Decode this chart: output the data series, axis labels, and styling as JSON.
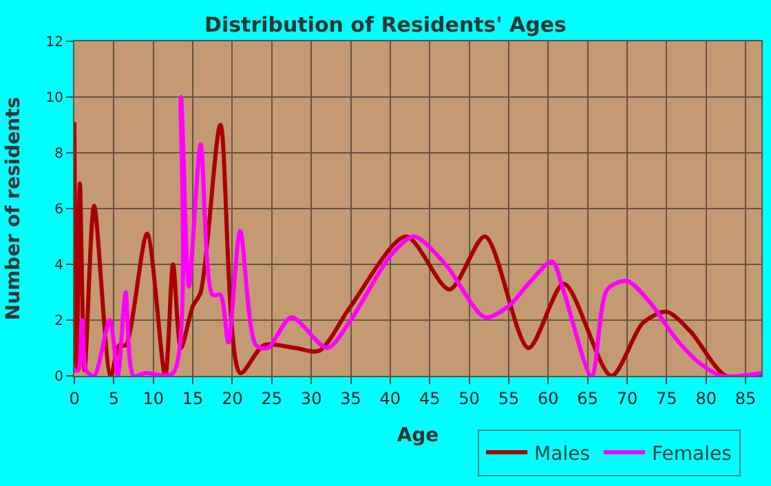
{
  "chart_data": {
    "type": "line",
    "title": "Distribution of Residents' Ages",
    "xlabel": "Age",
    "ylabel": "Number of residents",
    "xlim": [
      0,
      87
    ],
    "xticks": [
      0,
      5,
      10,
      15,
      20,
      25,
      30,
      35,
      40,
      45,
      50,
      55,
      60,
      65,
      70,
      75,
      80,
      85
    ],
    "ylim": [
      0,
      12
    ],
    "yticks": [
      0,
      2,
      4,
      6,
      8,
      10,
      12
    ],
    "grid": true,
    "legend": "bottom",
    "marker": "none",
    "line_style": "solid",
    "series": [
      {
        "name": "Males",
        "color": "#aa0000",
        "x": [
          0,
          0.3,
          0.7,
          1.3,
          2.5,
          4.6,
          5.7,
          6.5,
          9.2,
          11.5,
          12.5,
          13.5,
          15,
          16,
          18.5,
          21,
          24,
          28,
          31,
          35,
          42,
          47.5,
          52,
          57.5,
          62,
          68,
          72,
          75,
          78,
          82.5,
          87
        ],
        "values": [
          9.1,
          0.3,
          6.9,
          0.2,
          6.1,
          0,
          1.1,
          1.1,
          5.1,
          0,
          4,
          1,
          2.5,
          3,
          9,
          0.1,
          1.1,
          1,
          0.9,
          2.5,
          5,
          3.1,
          5,
          1,
          3.3,
          0,
          1.9,
          2.3,
          1.6,
          0,
          0
        ]
      },
      {
        "name": "Females",
        "color": "#ff00ff",
        "x": [
          0,
          0.5,
          1,
          1.5,
          2.5,
          4.5,
          5.5,
          6.5,
          7.5,
          9,
          12.5,
          13.5,
          14.5,
          16,
          17.5,
          18.5,
          19.5,
          21,
          23,
          24.5,
          27.5,
          32,
          35,
          40,
          43,
          47,
          52,
          55,
          57.5,
          60.5,
          62,
          65.5,
          67.5,
          70,
          73,
          76,
          79,
          82,
          87
        ],
        "values": [
          0.2,
          0.2,
          2,
          0.2,
          0,
          2,
          0,
          3,
          0,
          0.1,
          0.1,
          10,
          3.2,
          8.3,
          2.9,
          2.9,
          1.2,
          5.2,
          1.1,
          1,
          2.1,
          1,
          2,
          4.3,
          5,
          4,
          2.1,
          2.5,
          3.3,
          4.1,
          3,
          0,
          3.1,
          3.4,
          2.6,
          1.4,
          0.5,
          0,
          0.1
        ]
      }
    ]
  }
}
